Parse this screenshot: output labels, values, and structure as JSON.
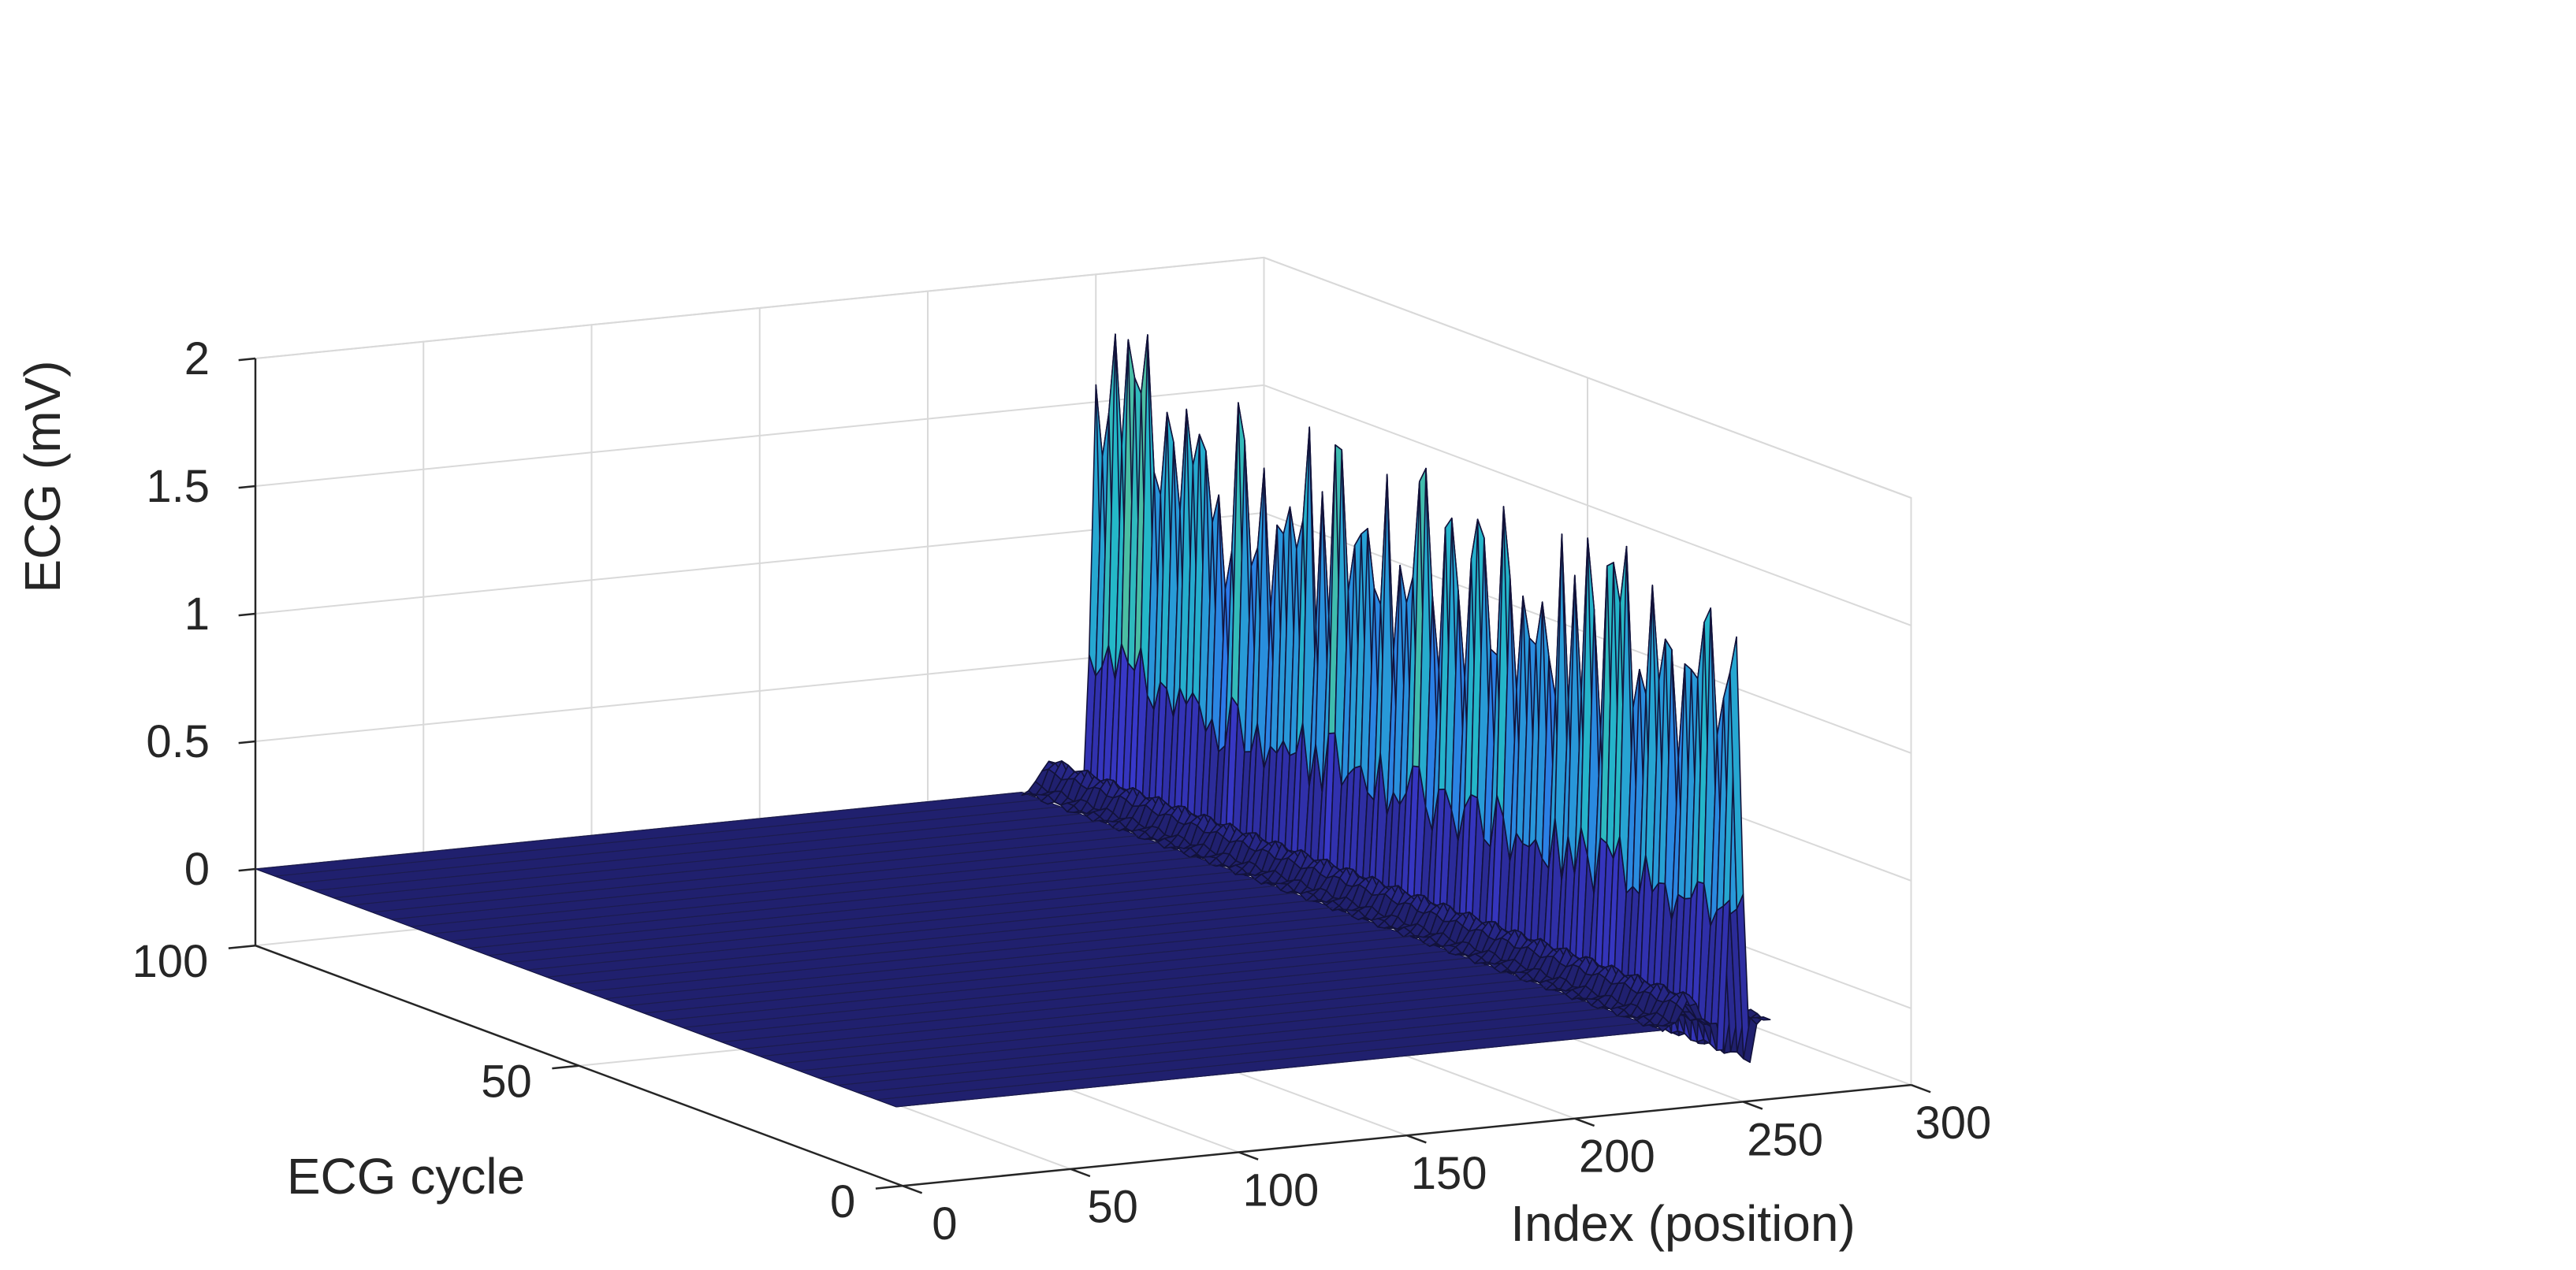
{
  "chart_data": {
    "type": "surface",
    "title": "",
    "xlabel": "Index (position)",
    "ylabel": "ECG cycle",
    "zlabel": "ECG (mV)",
    "xlim": [
      0,
      300
    ],
    "ylim": [
      0,
      100
    ],
    "zlim": [
      -0.3,
      2
    ],
    "xticks": [
      0,
      50,
      100,
      150,
      200,
      250,
      300
    ],
    "yticks": [
      0,
      50,
      100
    ],
    "zticks": [
      0,
      0.5,
      1,
      1.5,
      2
    ],
    "xtick_labels": [
      "0",
      "50",
      "100",
      "150",
      "200",
      "250",
      "300"
    ],
    "ytick_labels": [
      "0",
      "50",
      "100"
    ],
    "ztick_labels": [
      "0",
      "0.5",
      "1",
      "1.5",
      "2"
    ],
    "grid": true,
    "colormap": "parula",
    "surface_extent": {
      "index": [
        0,
        260
      ],
      "cycle": [
        1,
        100
      ]
    },
    "baseline_mV": 0,
    "qrs": {
      "index_range": [
        244,
        256
      ],
      "r_peak_index": 250,
      "r_peak_mV_typical": 1.3,
      "r_peak_mV_range": [
        0.95,
        1.85
      ],
      "q_dip_mV": -0.1,
      "s_dip_mV": -0.15
    },
    "p_wave": {
      "index_center": 236,
      "amplitude_mV": 0.12
    },
    "colors": {
      "low": "#20206e",
      "mid": "#2e6bf0",
      "upper": "#24b8c8",
      "high": "#c8d42e",
      "peak": "#f2c01e"
    }
  }
}
